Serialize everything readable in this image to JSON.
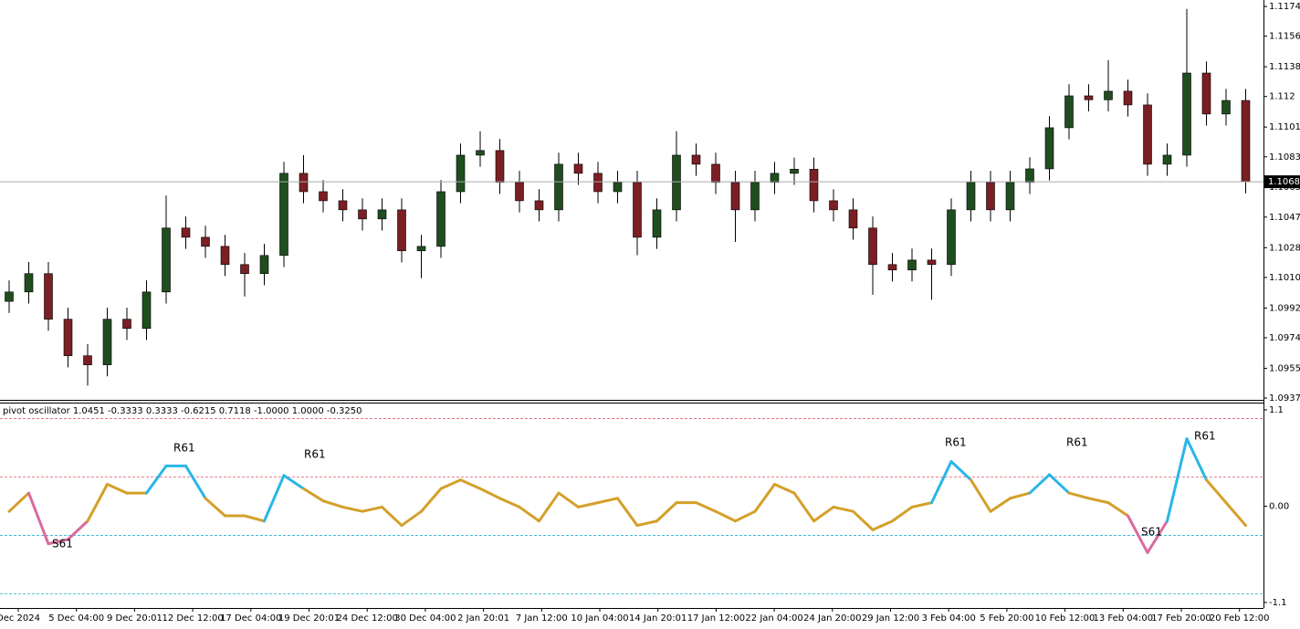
{
  "chart_data": [
    {
      "type": "candlestick",
      "open": [
        1.0996,
        1.10017,
        1.10128,
        1.09852,
        1.09631,
        1.09576,
        1.09852,
        1.09796,
        1.10017,
        1.10404,
        1.10348,
        1.10293,
        1.10183,
        1.10128,
        1.10238,
        1.10735,
        1.10624,
        1.10569,
        1.10514,
        1.10459,
        1.10514,
        1.10266,
        1.10293,
        1.10624,
        1.10845,
        1.10873,
        1.1068,
        1.10569,
        1.10514,
        1.1079,
        1.10735,
        1.10624,
        1.1068,
        1.10348,
        1.10514,
        1.10845,
        1.1079,
        1.1068,
        1.10514,
        1.1068,
        1.10735,
        1.1076,
        1.10569,
        1.10514,
        1.10404,
        1.10183,
        1.1015,
        1.1021,
        1.10183,
        1.10514,
        1.1068,
        1.10514,
        1.1068,
        1.10762,
        1.11011,
        1.11204,
        1.1118,
        1.11232,
        1.11149,
        1.1079,
        1.10845,
        1.11342,
        1.11094,
        1.11176
      ],
      "high": [
        1.10087,
        1.10198,
        1.10198,
        1.09922,
        1.09701,
        1.09922,
        1.09922,
        1.10087,
        1.106,
        1.10474,
        1.10418,
        1.10363,
        1.10253,
        1.10308,
        1.10805,
        1.10845,
        1.10694,
        1.10639,
        1.10584,
        1.10584,
        1.10584,
        1.10363,
        1.10694,
        1.10915,
        1.1099,
        1.10943,
        1.1075,
        1.10639,
        1.1086,
        1.1086,
        1.10805,
        1.1075,
        1.1075,
        1.10584,
        1.1099,
        1.10915,
        1.1086,
        1.1075,
        1.1075,
        1.10805,
        1.1083,
        1.1083,
        1.10639,
        1.10584,
        1.10474,
        1.10253,
        1.1028,
        1.1028,
        1.10584,
        1.1075,
        1.1075,
        1.1075,
        1.10832,
        1.11081,
        1.11274,
        1.11274,
        1.1142,
        1.11302,
        1.11219,
        1.10915,
        1.1173,
        1.11412,
        1.11246,
        1.11246
      ],
      "low": [
        1.0989,
        1.09947,
        1.09782,
        1.09561,
        1.0945,
        1.09506,
        1.09726,
        1.09726,
        1.09947,
        1.10278,
        1.10223,
        1.10113,
        1.0999,
        1.10058,
        1.10168,
        1.10554,
        1.10499,
        1.10444,
        1.10389,
        1.10389,
        1.10196,
        1.101,
        1.10223,
        1.10554,
        1.10775,
        1.1061,
        1.10499,
        1.10444,
        1.10444,
        1.10665,
        1.10554,
        1.10554,
        1.1024,
        1.10278,
        1.10444,
        1.1072,
        1.1061,
        1.1032,
        1.10444,
        1.1061,
        1.10665,
        1.10499,
        1.10444,
        1.10334,
        1.1,
        1.1008,
        1.1008,
        1.0997,
        1.10113,
        1.10444,
        1.10444,
        1.10444,
        1.1061,
        1.10692,
        1.10941,
        1.1111,
        1.1111,
        1.11079,
        1.1072,
        1.1072,
        1.10775,
        1.11024,
        1.11024,
        1.10614
      ],
      "close": [
        1.10017,
        1.10128,
        1.09852,
        1.09631,
        1.09576,
        1.09852,
        1.09796,
        1.10017,
        1.10404,
        1.10348,
        1.10293,
        1.10183,
        1.10128,
        1.10238,
        1.10735,
        1.10624,
        1.10569,
        1.10514,
        1.10459,
        1.10514,
        1.10266,
        1.10293,
        1.10624,
        1.10845,
        1.10873,
        1.1068,
        1.10569,
        1.10514,
        1.1079,
        1.10735,
        1.10624,
        1.1068,
        1.10348,
        1.10514,
        1.10845,
        1.1079,
        1.1068,
        1.10514,
        1.1068,
        1.10735,
        1.1076,
        1.10569,
        1.10514,
        1.10404,
        1.10183,
        1.1015,
        1.1021,
        1.10183,
        1.10514,
        1.1068,
        1.10514,
        1.1068,
        1.10762,
        1.11011,
        1.11204,
        1.1118,
        1.11232,
        1.11149,
        1.1079,
        1.10845,
        1.11342,
        1.11094,
        1.11176,
        1.10684
      ],
      "bull_color": "#1f4d1f",
      "bear_color": "#7a1f24",
      "ylim": [
        1.09364,
        1.11784
      ],
      "yticks": [
        1.11745,
        1.11565,
        1.1138,
        1.112,
        1.11015,
        1.10835,
        1.1065,
        1.1047,
        1.10285,
        1.10105,
        1.0992,
        1.0974,
        1.09555,
        1.09375
      ],
      "current_price": 1.10684,
      "time_labels": [
        "Dec 2024",
        "5 Dec 04:00",
        "9 Dec 20:01",
        "12 Dec 12:00",
        "17 Dec 04:00",
        "19 Dec 20:01",
        "24 Dec 12:00",
        "30 Dec 04:00",
        "2 Jan 20:01",
        "7 Jan 12:00",
        "10 Jan 04:00",
        "14 Jan 20:01",
        "17 Jan 12:00",
        "22 Jan 04:00",
        "24 Jan 20:00",
        "29 Jan 12:00",
        "3 Feb 04:00",
        "5 Feb 20:00",
        "10 Feb 12:00",
        "13 Feb 04:00",
        "17 Feb 20:00",
        "20 Feb 12:00"
      ]
    },
    {
      "type": "line",
      "title": "pivot oscillator 1.0451 -0.3333 0.3333 -0.6215 0.7118 -1.0000 1.0000 -0.3250",
      "series": [
        {
          "color": "#d4a02a",
          "values": [
            -0.06,
            0.15,
            -0.43,
            -0.38,
            -0.17,
            0.25,
            0.15,
            0.15,
            0.46,
            0.46,
            0.09,
            -0.11,
            -0.11,
            -0.17,
            0.35,
            0.2,
            0.06,
            -0.01,
            -0.06,
            -0.01,
            -0.22,
            -0.06,
            0.2,
            0.3,
            0.2,
            0.09,
            -0.01,
            -0.17,
            0.15,
            -0.01,
            0.04,
            0.09,
            -0.22,
            -0.17,
            0.04,
            0.04,
            -0.06,
            -0.17,
            -0.06,
            0.25,
            0.15,
            -0.17,
            -0.01,
            -0.06,
            -0.27,
            -0.17,
            -0.01,
            0.04,
            0.51,
            0.3,
            -0.06,
            0.09,
            0.15,
            0.36,
            0.15,
            0.09,
            0.04,
            -0.11,
            -0.53,
            -0.17,
            0.77,
            0.3,
            0.04,
            -0.22
          ]
        }
      ],
      "upper_color": "#29b6e8",
      "lower_color": "#d86ba0",
      "levels": [
        1,
        0.3333,
        -0.3333,
        -1
      ],
      "level_colors": [
        "#e06070",
        "#e06070",
        "#20b0d0",
        "#20b0d0"
      ],
      "ylim": [
        -1.163,
        1.183
      ],
      "yticks": [
        1.1,
        {
          "value": 0,
          "label": "0.00"
        },
        -1.1
      ],
      "annotations": [
        "R61",
        "R61",
        "R61",
        "R61",
        "R61",
        "S61",
        "S61"
      ]
    }
  ]
}
